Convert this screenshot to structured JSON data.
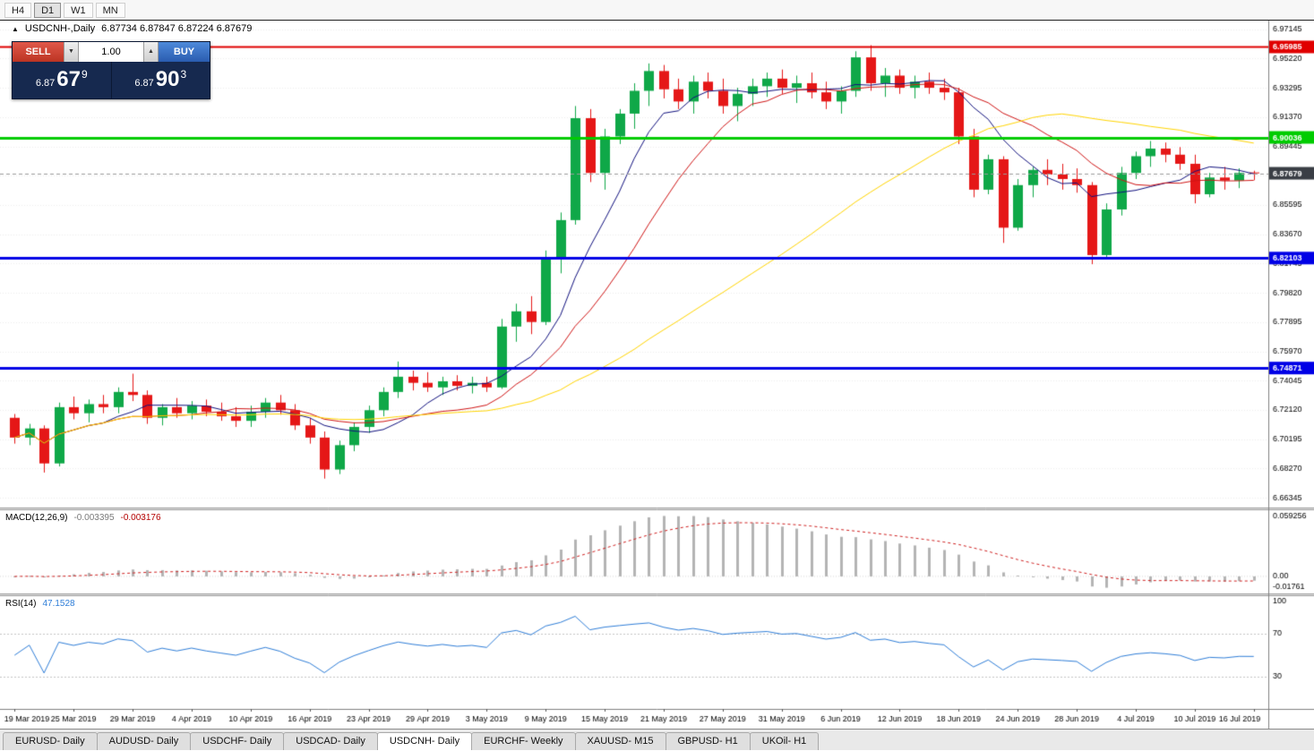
{
  "toolbar": {
    "timeframes": [
      {
        "label": "H4",
        "active": false
      },
      {
        "label": "D1",
        "active": true
      },
      {
        "label": "W1",
        "active": false
      },
      {
        "label": "MN",
        "active": false
      }
    ]
  },
  "icons": {
    "collapse_panel": "▲",
    "volume_down": "▼",
    "volume_up": "▲"
  },
  "chart": {
    "symbol_period": "USDCNH-,Daily",
    "ohlc": "6.87734 6.87847 6.87224 6.87679"
  },
  "one_click": {
    "sell_label": "SELL",
    "buy_label": "BUY",
    "volume": "1.00",
    "sell_price": {
      "prefix": "6.87",
      "big": "67",
      "sup": "9"
    },
    "buy_price": {
      "prefix": "6.87",
      "big": "90",
      "sup": "3"
    }
  },
  "chart_data": {
    "type": "candlestick",
    "symbol": "USDCNH-",
    "timeframe": "Daily",
    "current_price": {
      "value": 6.87679,
      "label": "6.87679",
      "tag_color": "#3a3e45"
    },
    "colors": {
      "bull": "#0fa848",
      "bear": "#e51717"
    },
    "y_axis": {
      "plot_max": 6.976,
      "plot_min": 6.657,
      "labels": [
        "6.97145",
        "6.95220",
        "6.93295",
        "6.91370",
        "6.89445",
        "6.87520",
        "6.85595",
        "6.83670",
        "6.81745",
        "6.79820",
        "6.77895",
        "6.75970",
        "6.74045",
        "6.72120",
        "6.70195",
        "6.68270",
        "6.66345"
      ]
    },
    "hlines": [
      {
        "value": 6.95985,
        "label": "6.95985",
        "color": "#e00000",
        "width": 2
      },
      {
        "value": 6.90036,
        "label": "6.90036",
        "color": "#00cc00",
        "width": 3
      },
      {
        "value": 6.82103,
        "label": "6.82103",
        "color": "#0000e6",
        "width": 3
      },
      {
        "value": 6.74871,
        "label": "6.74871",
        "color": "#0000e6",
        "width": 3
      }
    ],
    "moving_averages": [
      {
        "period": 7,
        "color": "#10107e"
      },
      {
        "period": 13,
        "color": "#d01414"
      },
      {
        "period": 34,
        "color": "#ffd500"
      }
    ],
    "columns": [
      "open",
      "high",
      "low",
      "close"
    ],
    "candles": [
      [
        6.716,
        6.7185,
        6.699,
        6.703
      ],
      [
        6.703,
        6.712,
        6.698,
        6.709
      ],
      [
        6.709,
        6.711,
        6.68,
        6.686
      ],
      [
        6.686,
        6.726,
        6.684,
        6.723
      ],
      [
        6.723,
        6.73,
        6.715,
        6.719
      ],
      [
        6.719,
        6.728,
        6.713,
        6.725
      ],
      [
        6.725,
        6.731,
        6.719,
        6.723
      ],
      [
        6.723,
        6.736,
        6.719,
        6.733
      ],
      [
        6.733,
        6.745,
        6.727,
        6.731
      ],
      [
        6.731,
        6.734,
        6.712,
        6.716
      ],
      [
        6.716,
        6.725,
        6.711,
        6.723
      ],
      [
        6.723,
        6.729,
        6.716,
        6.719
      ],
      [
        6.719,
        6.727,
        6.715,
        6.724
      ],
      [
        6.724,
        6.728,
        6.717,
        6.72
      ],
      [
        6.72,
        6.726,
        6.714,
        6.717
      ],
      [
        6.717,
        6.723,
        6.71,
        6.714
      ],
      [
        6.714,
        6.724,
        6.71,
        6.72
      ],
      [
        6.72,
        6.729,
        6.716,
        6.726
      ],
      [
        6.726,
        6.731,
        6.718,
        6.721
      ],
      [
        6.721,
        6.725,
        6.708,
        6.711
      ],
      [
        6.711,
        6.716,
        6.699,
        6.703
      ],
      [
        6.703,
        6.707,
        6.676,
        6.682
      ],
      [
        6.682,
        6.701,
        6.679,
        6.698
      ],
      [
        6.698,
        6.713,
        6.694,
        6.71
      ],
      [
        6.71,
        6.724,
        6.706,
        6.721
      ],
      [
        6.721,
        6.736,
        6.717,
        6.733
      ],
      [
        6.733,
        6.753,
        6.729,
        6.743
      ],
      [
        6.743,
        6.747,
        6.734,
        6.739
      ],
      [
        6.739,
        6.746,
        6.733,
        6.736
      ],
      [
        6.736,
        6.743,
        6.731,
        6.74
      ],
      [
        6.74,
        6.744,
        6.734,
        6.737
      ],
      [
        6.737,
        6.743,
        6.732,
        6.739
      ],
      [
        6.739,
        6.743,
        6.733,
        6.736
      ],
      [
        6.736,
        6.781,
        6.735,
        6.776
      ],
      [
        6.776,
        6.791,
        6.766,
        6.786
      ],
      [
        6.786,
        6.796,
        6.771,
        6.779
      ],
      [
        6.779,
        6.826,
        6.777,
        6.821
      ],
      [
        6.821,
        6.851,
        6.811,
        6.846
      ],
      [
        6.846,
        6.921,
        6.843,
        6.913
      ],
      [
        6.913,
        6.919,
        6.871,
        6.877
      ],
      [
        6.877,
        6.906,
        6.866,
        6.901
      ],
      [
        6.901,
        6.919,
        6.896,
        6.916
      ],
      [
        6.916,
        6.936,
        6.906,
        6.931
      ],
      [
        6.931,
        6.949,
        6.921,
        6.944
      ],
      [
        6.944,
        6.948,
        6.926,
        6.932
      ],
      [
        6.932,
        6.939,
        6.919,
        6.924
      ],
      [
        6.924,
        6.941,
        6.916,
        6.937
      ],
      [
        6.937,
        6.943,
        6.926,
        6.931
      ],
      [
        6.931,
        6.939,
        6.916,
        6.921
      ],
      [
        6.921,
        6.933,
        6.911,
        6.929
      ],
      [
        6.929,
        6.939,
        6.921,
        6.934
      ],
      [
        6.934,
        6.943,
        6.927,
        6.939
      ],
      [
        6.939,
        6.945,
        6.929,
        6.933
      ],
      [
        6.933,
        6.941,
        6.923,
        6.936
      ],
      [
        6.936,
        6.943,
        6.926,
        6.93
      ],
      [
        6.93,
        6.937,
        6.919,
        6.924
      ],
      [
        6.924,
        6.934,
        6.916,
        6.931
      ],
      [
        6.931,
        6.957,
        6.927,
        6.953
      ],
      [
        6.953,
        6.961,
        6.931,
        6.936
      ],
      [
        6.936,
        6.946,
        6.927,
        6.941
      ],
      [
        6.941,
        6.945,
        6.929,
        6.933
      ],
      [
        6.933,
        6.941,
        6.926,
        6.937
      ],
      [
        6.937,
        6.943,
        6.929,
        6.933
      ],
      [
        6.933,
        6.939,
        6.925,
        6.93
      ],
      [
        6.93,
        6.933,
        6.896,
        6.901
      ],
      [
        6.901,
        6.906,
        6.861,
        6.866
      ],
      [
        6.866,
        6.889,
        6.863,
        6.886
      ],
      [
        6.886,
        6.888,
        6.831,
        6.841
      ],
      [
        6.841,
        6.873,
        6.839,
        6.869
      ],
      [
        6.869,
        6.881,
        6.861,
        6.879
      ],
      [
        6.879,
        6.886,
        6.869,
        6.876
      ],
      [
        6.876,
        6.883,
        6.866,
        6.873
      ],
      [
        6.873,
        6.88,
        6.864,
        6.869
      ],
      [
        6.869,
        6.871,
        6.817,
        6.823
      ],
      [
        6.823,
        6.857,
        6.821,
        6.853
      ],
      [
        6.853,
        6.881,
        6.849,
        6.877
      ],
      [
        6.877,
        6.891,
        6.873,
        6.888
      ],
      [
        6.888,
        6.898,
        6.881,
        6.893
      ],
      [
        6.893,
        6.897,
        6.884,
        6.889
      ],
      [
        6.889,
        6.894,
        6.879,
        6.883
      ],
      [
        6.883,
        6.889,
        6.857,
        6.863
      ],
      [
        6.863,
        6.877,
        6.861,
        6.874
      ],
      [
        6.874,
        6.881,
        6.866,
        6.872
      ],
      [
        6.872,
        6.88,
        6.867,
        6.877
      ],
      [
        6.87734,
        6.87847,
        6.87224,
        6.87679
      ]
    ],
    "date_labels": [
      {
        "index": 0,
        "label": "19 Mar 2019"
      },
      {
        "index": 4,
        "label": "25 Mar 2019"
      },
      {
        "index": 8,
        "label": "29 Mar 2019"
      },
      {
        "index": 12,
        "label": "4 Apr 2019"
      },
      {
        "index": 16,
        "label": "10 Apr 2019"
      },
      {
        "index": 20,
        "label": "16 Apr 2019"
      },
      {
        "index": 24,
        "label": "23 Apr 2019"
      },
      {
        "index": 28,
        "label": "29 Apr 2019"
      },
      {
        "index": 32,
        "label": "3 May 2019"
      },
      {
        "index": 36,
        "label": "9 May 2019"
      },
      {
        "index": 40,
        "label": "15 May 2019"
      },
      {
        "index": 44,
        "label": "21 May 2019"
      },
      {
        "index": 48,
        "label": "27 May 2019"
      },
      {
        "index": 52,
        "label": "31 May 2019"
      },
      {
        "index": 56,
        "label": "6 Jun 2019"
      },
      {
        "index": 60,
        "label": "12 Jun 2019"
      },
      {
        "index": 64,
        "label": "18 Jun 2019"
      },
      {
        "index": 68,
        "label": "24 Jun 2019"
      },
      {
        "index": 72,
        "label": "28 Jun 2019"
      },
      {
        "index": 76,
        "label": "4 Jul 2019"
      },
      {
        "index": 80,
        "label": "10 Jul 2019"
      },
      {
        "index": 84,
        "label": "16 Jul 2019"
      }
    ],
    "macd": {
      "name": "MACD(12,26,9)",
      "value_main": "-0.003395",
      "value_signal": "-0.003176",
      "params": [
        12,
        26,
        9
      ],
      "scale_labels": [
        "0.059256",
        "0.00",
        "-0.01761"
      ],
      "bar_color": "#b4b4b4",
      "signal_color": "#d02020"
    },
    "rsi": {
      "name": "RSI(14)",
      "value": "47.1528",
      "period": 14,
      "levels": [
        70,
        30
      ],
      "scale_labels": [
        {
          "value": 100,
          "label": "100"
        },
        {
          "value": 70,
          "label": "70"
        },
        {
          "value": 30,
          "label": "30"
        }
      ],
      "range_max": 105,
      "range_min": 0,
      "line_color": "#2f7ed8"
    }
  },
  "tabs": {
    "items": [
      {
        "label": "EURUSD- Daily",
        "active": false
      },
      {
        "label": "AUDUSD- Daily",
        "active": false
      },
      {
        "label": "USDCHF- Daily",
        "active": false
      },
      {
        "label": "USDCAD- Daily",
        "active": false
      },
      {
        "label": "USDCNH- Daily",
        "active": true
      },
      {
        "label": "EURCHF- Weekly",
        "active": false
      },
      {
        "label": "XAUUSD- M15",
        "active": false
      },
      {
        "label": "GBPUSD- H1",
        "active": false
      },
      {
        "label": "UKOil- H1",
        "active": false
      }
    ]
  }
}
